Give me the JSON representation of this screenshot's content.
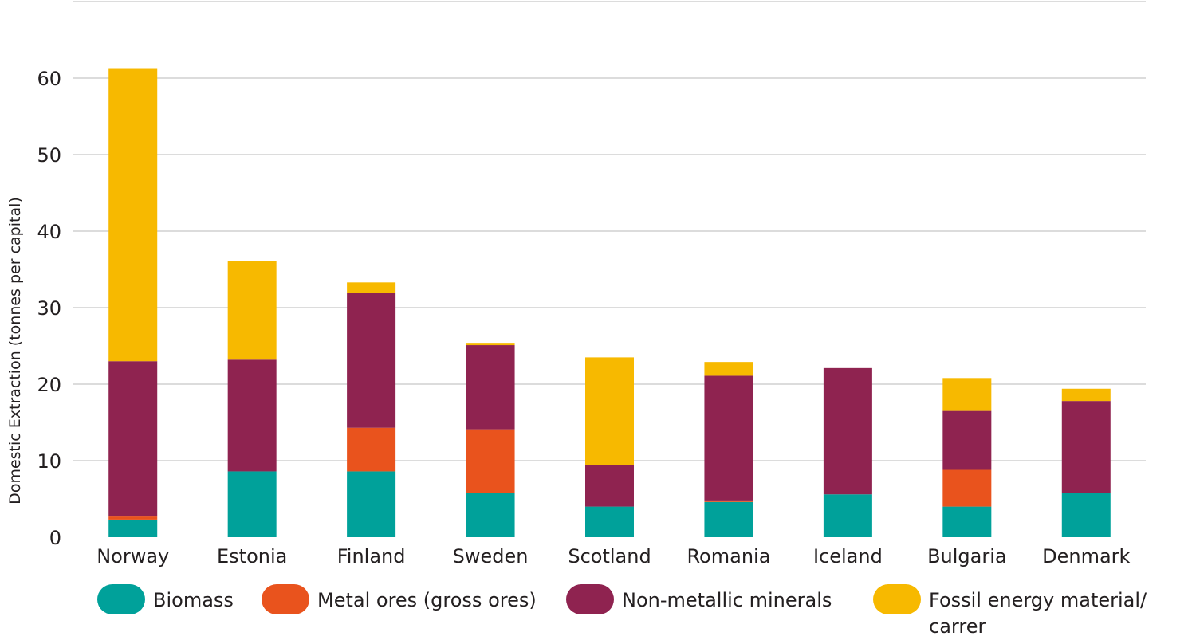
{
  "chart_data": {
    "type": "bar",
    "stacked": true,
    "title": "",
    "xlabel": "",
    "ylabel": "Domestic Extraction (tonnes per capital)",
    "ylim": [
      0,
      70
    ],
    "yticks": [
      0,
      10,
      20,
      30,
      40,
      50,
      60
    ],
    "grid": true,
    "legend_position": "bottom",
    "categories": [
      "Norway",
      "Estonia",
      "Finland",
      "Sweden",
      "Scotland",
      "Romania",
      "Iceland",
      "Bulgaria",
      "Denmark"
    ],
    "series": [
      {
        "name": "Biomass",
        "color": "#00a19a",
        "values": [
          2.3,
          8.6,
          8.6,
          5.8,
          4.0,
          4.6,
          5.6,
          4.0,
          5.8
        ]
      },
      {
        "name": "Metal ores (gross ores)",
        "color": "#e9531d",
        "values": [
          0.4,
          0.0,
          5.7,
          8.3,
          0.0,
          0.2,
          0.0,
          4.8,
          0.0
        ]
      },
      {
        "name": "Non-metallic minerals",
        "color": "#8f2350",
        "values": [
          20.3,
          14.6,
          17.6,
          11.0,
          5.4,
          16.3,
          16.5,
          7.7,
          12.0
        ]
      },
      {
        "name": "Fossil energy material/ carrer",
        "color": "#f7b900",
        "values": [
          38.3,
          12.9,
          1.4,
          0.3,
          14.1,
          1.8,
          0.0,
          4.3,
          1.6
        ]
      }
    ]
  }
}
